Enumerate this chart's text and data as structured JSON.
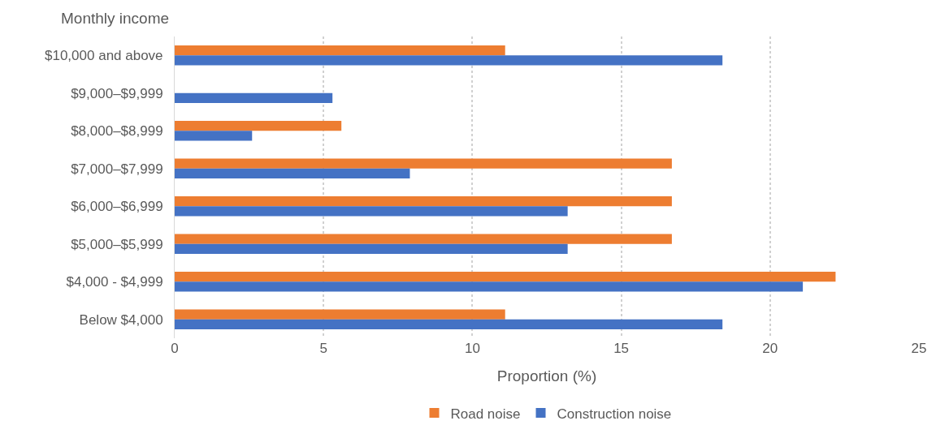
{
  "chart_data": {
    "type": "bar",
    "orientation": "horizontal",
    "ylabel": "Monthly income",
    "xlabel": "Proportion (%)",
    "categories": [
      "$10,000 and above",
      "$9,000–$9,999",
      "$8,000–$8,999",
      "$7,000–$7,999",
      "$6,000–$6,999",
      "$5,000–$5,999",
      "$4,000 - $4,999",
      "Below $4,000"
    ],
    "series": [
      {
        "name": "Road noise",
        "color": "#ed7d31",
        "values": [
          11.1,
          0,
          5.6,
          16.7,
          16.7,
          16.7,
          22.2,
          11.1
        ]
      },
      {
        "name": "Construction noise",
        "color": "#4472c4",
        "values": [
          18.4,
          5.3,
          2.6,
          7.9,
          13.2,
          13.2,
          21.1,
          18.4
        ]
      }
    ],
    "xlim": [
      0,
      25
    ],
    "xticks": [
      0,
      5,
      10,
      15,
      20,
      25
    ],
    "grid": "x",
    "legend": "bottom"
  }
}
